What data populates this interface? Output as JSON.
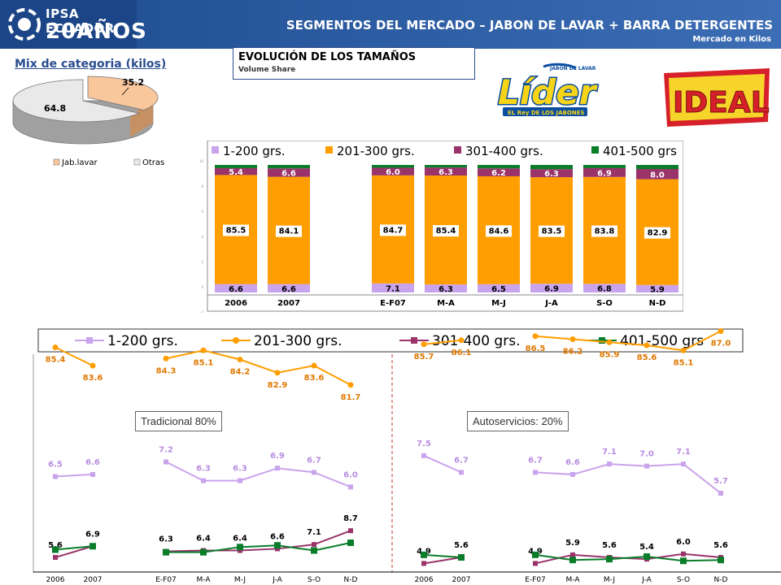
{
  "header": {
    "logo_line1": "IPSA ECUADOR",
    "logo_line2": "20AÑOS",
    "title": "SEGMENTOS DEL MERCADO – JABON DE LAVAR + BARRA DETERGENTES",
    "subtitle": "Mercado en Kilos"
  },
  "brands": {
    "lider": "Líder",
    "lider_tag": "JABÓN DE LAVAR",
    "lider_sub": "EL Rey DE LOS JABONES",
    "ideal": "IDEAL"
  },
  "colors": {
    "s1": "#c9a3ec",
    "s2": "#ff9e00",
    "s3": "#99336a",
    "s4": "#0a7d2a",
    "pie_a": "#f9c79c",
    "pie_b": "#e9e9e9"
  },
  "chart_data": [
    {
      "type": "pie",
      "title": "Mix de categoria (kilos)",
      "labels": [
        "Jab.lavar",
        "Otras"
      ],
      "values": [
        35.2,
        64.8
      ]
    },
    {
      "type": "bar",
      "stacked": true,
      "title": "EVOLUCIÓN DE LOS TAMAÑOS",
      "subtitle": "Volume Share",
      "categories": [
        "2006",
        "2007",
        "E-F07",
        "M-A",
        "M-J",
        "J-A",
        "S-O",
        "N-D"
      ],
      "legend": [
        "1-200 grs.",
        "201-300 grs.",
        "301-400 grs.",
        "401-500 grs"
      ],
      "labels": {
        "s1": [
          "6.6",
          "6.6",
          "7.1",
          "6.3",
          "6.5",
          "6.9",
          "6.8",
          "5.9"
        ],
        "s2": [
          "85.5",
          "84.1",
          "84.7",
          "85.4",
          "84.6",
          "83.5",
          "83.8",
          "82.9"
        ],
        "s3": [
          "5.4",
          "6.6",
          "6.0",
          "6.3",
          "6.2",
          "6.3",
          "6.9",
          "8.0"
        ]
      },
      "yticks": [
        "10",
        "8",
        "6",
        "4",
        "2",
        "0",
        "-2"
      ],
      "values": {
        "s1": [
          6.6,
          6.6,
          7.1,
          6.3,
          6.5,
          6.9,
          6.8,
          5.9
        ],
        "s2": [
          85.5,
          84.1,
          84.7,
          85.4,
          84.6,
          83.5,
          83.8,
          82.9
        ],
        "s3": [
          5.4,
          6.6,
          6.0,
          6.3,
          6.2,
          6.3,
          6.9,
          8.0
        ],
        "s4": [
          2.5,
          2.7,
          2.2,
          2.0,
          2.7,
          3.3,
          2.5,
          3.2
        ]
      }
    },
    {
      "type": "line",
      "legend": [
        "1-200 grs.",
        "201-300 grs.",
        "301-400 grs.",
        "401-500 grs"
      ],
      "panels": [
        {
          "label": "Tradicional 80%",
          "categories": [
            "2006",
            "2007",
            "E-F07",
            "M-A",
            "M-J",
            "J-A",
            "S-O",
            "N-D"
          ],
          "s2": [
            85.4,
            83.6,
            84.3,
            85.1,
            84.2,
            82.9,
            83.6,
            81.7
          ],
          "s1": [
            6.5,
            6.6,
            7.2,
            6.3,
            6.3,
            6.9,
            6.7,
            6.0
          ],
          "s3": [
            5.6,
            6.9,
            6.3,
            6.4,
            6.4,
            6.6,
            7.1,
            8.7
          ],
          "s4": [
            2.5,
            2.9,
            2.2,
            2.2,
            2.8,
            3.0,
            2.4,
            3.3
          ]
        },
        {
          "label": "Autoservicios: 20%",
          "categories": [
            "2006",
            "2007",
            "E-F07",
            "M-A",
            "M-J",
            "J-A",
            "S-O",
            "N-D"
          ],
          "s2": [
            85.7,
            86.1,
            86.5,
            86.2,
            85.9,
            85.6,
            85.1,
            87.0
          ],
          "s1": [
            7.5,
            6.7,
            6.7,
            6.6,
            7.1,
            7.0,
            7.1,
            5.7
          ],
          "s3": [
            4.9,
            5.6,
            4.9,
            5.9,
            5.6,
            5.4,
            6.0,
            5.6
          ],
          "s4": [
            1.9,
            1.6,
            1.9,
            1.3,
            1.4,
            1.7,
            1.2,
            1.3
          ]
        }
      ]
    }
  ]
}
